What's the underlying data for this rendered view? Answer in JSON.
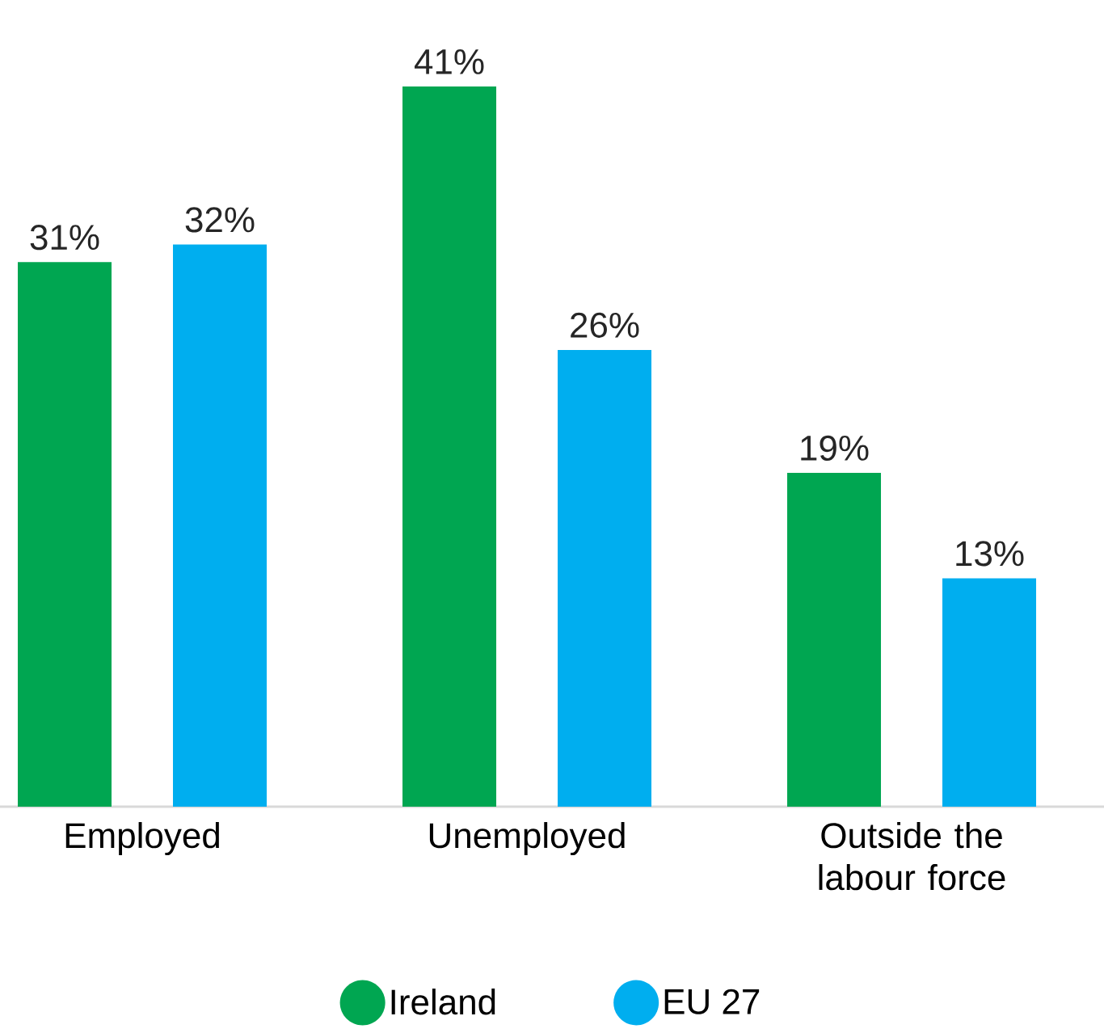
{
  "chart_data": {
    "type": "bar",
    "categories": [
      "Employed",
      "Unemployed",
      "Outside the labour force"
    ],
    "series": [
      {
        "name": "Ireland",
        "color": "#00a651",
        "values": [
          31,
          41,
          19
        ],
        "value_labels": [
          "31%",
          "41%",
          "19%"
        ]
      },
      {
        "name": "EU 27",
        "color": "#00aeef",
        "values": [
          32,
          26,
          13
        ],
        "value_labels": [
          "32%",
          "26%",
          "13%"
        ]
      }
    ],
    "legend": "bottom"
  }
}
